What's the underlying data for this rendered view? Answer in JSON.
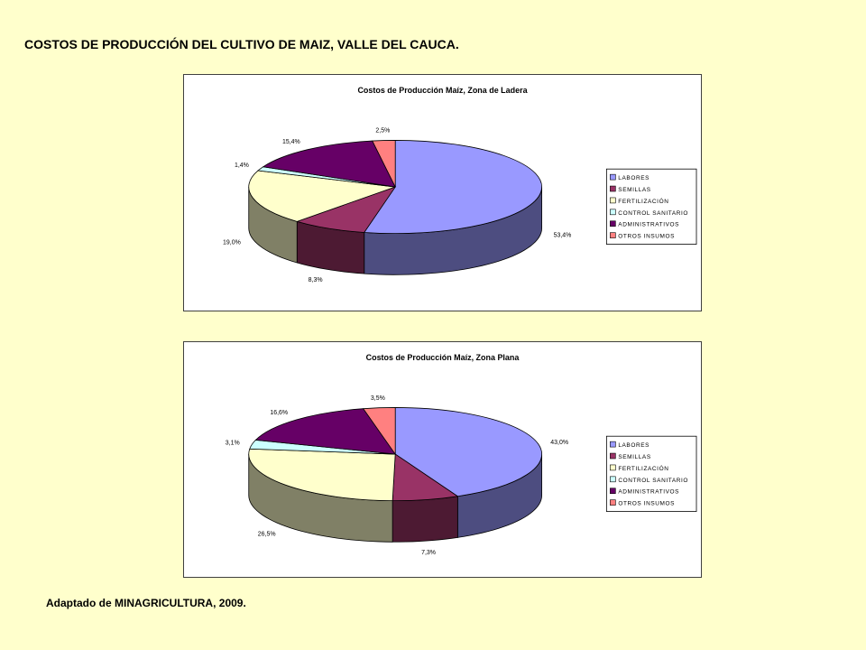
{
  "page": {
    "title": "COSTOS DE PRODUCCIÓN DEL CULTIVO DE MAIZ, VALLE DEL CAUCA.",
    "source": "Adaptado  de MINAGRICULTURA,  2009."
  },
  "chart_data": [
    {
      "type": "pie",
      "title": "Costos de Producción Maíz, Zona de Ladera",
      "style": "3d-exploded-none",
      "legend_position": "right",
      "categories": [
        "LABORES",
        "SEMILLAS",
        "FERTILIZACIÓN",
        "CONTROL SANITARIO",
        "ADMINISTRATIVOS",
        "OTROS INSUMOS"
      ],
      "values": [
        53.4,
        8.3,
        19.0,
        1.4,
        15.4,
        2.5
      ],
      "value_labels": [
        "53,4%",
        "8,3%",
        "19,0%",
        "1,4%",
        "15,4%",
        "2,5%"
      ],
      "colors": [
        "#9999FF",
        "#993366",
        "#FFFFCC",
        "#CCFFFF",
        "#660066",
        "#FF8080"
      ]
    },
    {
      "type": "pie",
      "title": "Costos de Producción Maíz, Zona Plana",
      "style": "3d-exploded-none",
      "legend_position": "right",
      "categories": [
        "LABORES",
        "SEMILLAS",
        "FERTILIZACIÓN",
        "CONTROL SANITARIO",
        "ADMINISTRATIVOS",
        "OTROS INSUMOS"
      ],
      "values": [
        43.0,
        7.3,
        26.5,
        3.1,
        16.6,
        3.5
      ],
      "value_labels": [
        "43,0%",
        "7,3%",
        "26,5%",
        "3,1%",
        "16,6%",
        "3,5%"
      ],
      "colors": [
        "#9999FF",
        "#993366",
        "#FFFFCC",
        "#CCFFFF",
        "#660066",
        "#FF8080"
      ]
    }
  ]
}
